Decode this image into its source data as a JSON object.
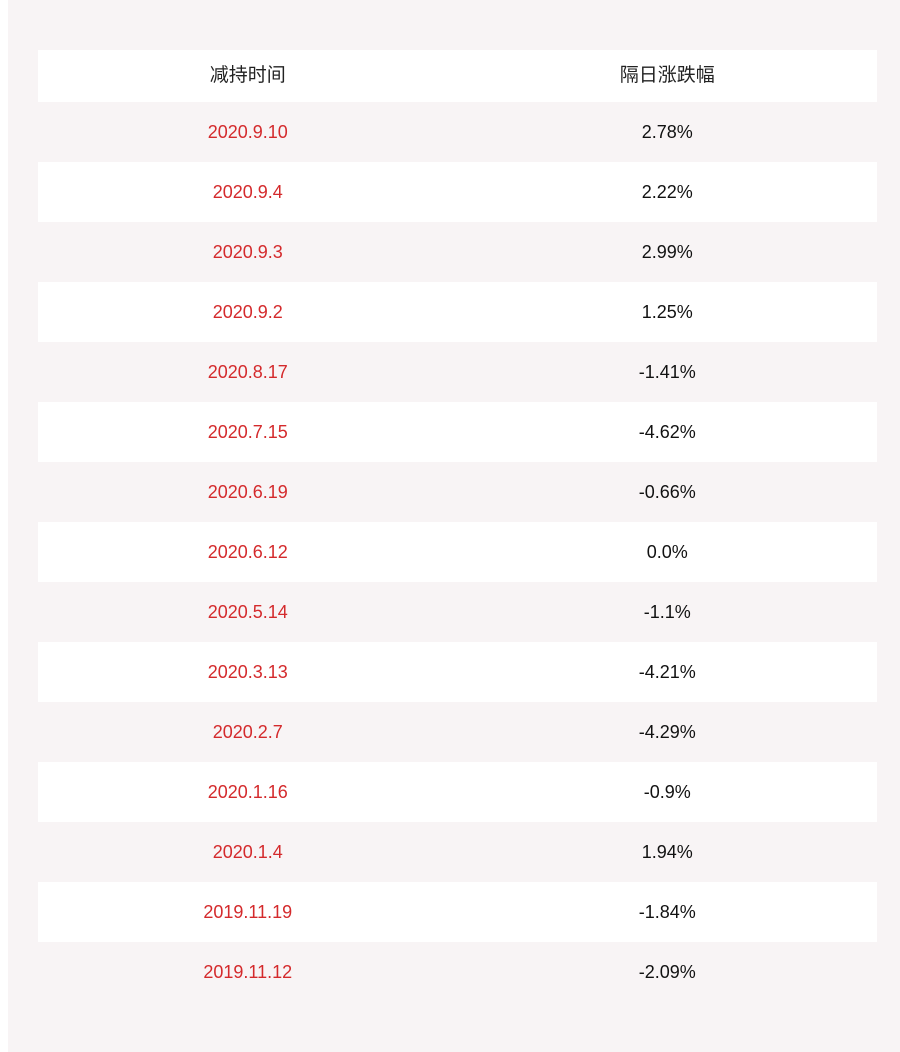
{
  "table": {
    "columns": [
      "减持时间",
      "隔日涨跌幅"
    ],
    "rows": [
      {
        "date": "2020.9.10",
        "change": "2.78%"
      },
      {
        "date": "2020.9.4",
        "change": "2.22%"
      },
      {
        "date": "2020.9.3",
        "change": "2.99%"
      },
      {
        "date": "2020.9.2",
        "change": "1.25%"
      },
      {
        "date": "2020.8.17",
        "change": "-1.41%"
      },
      {
        "date": "2020.7.15",
        "change": "-4.62%"
      },
      {
        "date": "2020.6.19",
        "change": "-0.66%"
      },
      {
        "date": "2020.6.12",
        "change": "0.0%"
      },
      {
        "date": "2020.5.14",
        "change": "-1.1%"
      },
      {
        "date": "2020.3.13",
        "change": "-4.21%"
      },
      {
        "date": "2020.2.7",
        "change": "-4.29%"
      },
      {
        "date": "2020.1.16",
        "change": "-0.9%"
      },
      {
        "date": "2020.1.4",
        "change": "1.94%"
      },
      {
        "date": "2019.11.19",
        "change": "-1.84%"
      },
      {
        "date": "2019.11.12",
        "change": "-2.09%"
      }
    ]
  },
  "colors": {
    "date_text": "#d42a2c",
    "value_text": "#111111",
    "panel_bg": "#f8f4f5",
    "row_alt_bg": "#ffffff"
  }
}
